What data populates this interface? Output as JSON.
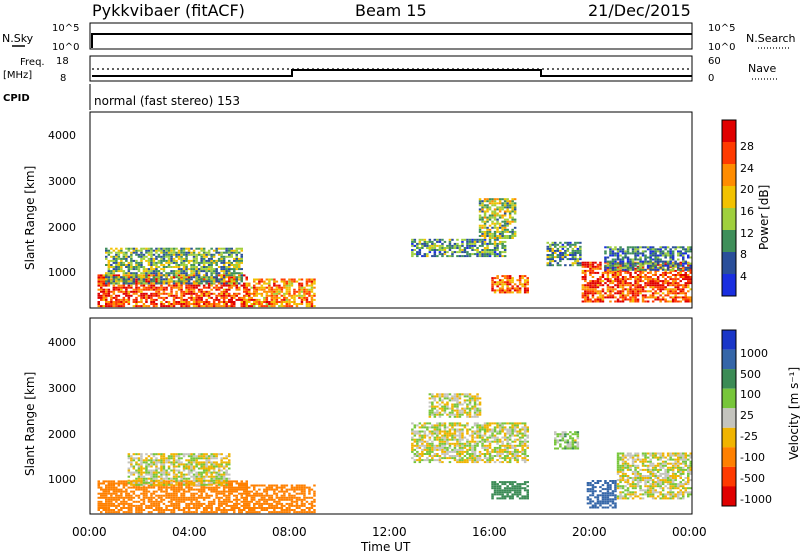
{
  "header": {
    "station": "Pykkvibaer (fitACF)",
    "beam": "Beam 15",
    "date": "21/Dec/2015"
  },
  "top_panels": {
    "nsky": {
      "left_label": "N.Sky",
      "left_ticks": [
        "10^5",
        "10^0"
      ],
      "right_label": "N.Search",
      "right_ticks": [
        "10^5",
        "10^0"
      ]
    },
    "freq": {
      "left_label_1": "Freq.",
      "left_label_2": "[MHz]",
      "left_ticks": [
        "18",
        "8"
      ],
      "right_label": "Nave",
      "right_ticks": [
        "60",
        "0"
      ]
    },
    "cpid": {
      "label": "CPID",
      "text": "normal (fast stereo) 153"
    }
  },
  "power_panel": {
    "ylabel": "Slant Range [km]",
    "yticks": [
      "4000",
      "3000",
      "2000",
      "1000"
    ],
    "colorbar_label": "Power [dB]",
    "colorbar_ticks": [
      "28",
      "24",
      "20",
      "16",
      "12",
      "8",
      "4"
    ],
    "colorbar_colors": [
      "#e00000",
      "#ff3a00",
      "#ff8c00",
      "#f2c200",
      "#9fcf3d",
      "#3f8f5a",
      "#2a4f9a",
      "#1a2fe0"
    ]
  },
  "velocity_panel": {
    "ylabel": "Slant Range [km]",
    "yticks": [
      "4000",
      "3000",
      "2000",
      "1000"
    ],
    "colorbar_label": "Velocity [m s⁻¹]",
    "colorbar_ticks": [
      "1000",
      "500",
      "100",
      "25",
      "-25",
      "-100",
      "-500",
      "-1000"
    ],
    "colorbar_colors": [
      "#1a36c8",
      "#3566a8",
      "#3b8b55",
      "#77c63a",
      "#c4c4be",
      "#f0b400",
      "#ff8000",
      "#ff3a00",
      "#e00000"
    ]
  },
  "xaxis": {
    "ticks": [
      "00:00",
      "04:00",
      "08:00",
      "12:00",
      "16:00",
      "20:00",
      "00:00"
    ],
    "label": "Time UT"
  },
  "chart_data": [
    {
      "type": "line",
      "title": "N.Sky / N.Search",
      "x": [
        0,
        0.2,
        24
      ],
      "ylim": [
        0,
        5
      ],
      "y_scale": "log",
      "series": [
        {
          "values": [
            0,
            4.5,
            4.6
          ]
        }
      ]
    },
    {
      "type": "line",
      "title": "Freq. / Nave",
      "x": [
        0,
        8.1,
        8.1,
        18.2,
        18.2,
        24
      ],
      "ylim_left": [
        8,
        18
      ],
      "ylim_right": [
        0,
        60
      ],
      "series": [
        {
          "values": [
            10.5,
            10.5,
            12.2,
            12.2,
            10.5,
            10.5
          ]
        }
      ]
    },
    {
      "type": "heatmap",
      "title": "Power",
      "x_range_hours": [
        0,
        24
      ],
      "y_range_km": [
        180,
        4500
      ],
      "colorbar_range_db": [
        0,
        32
      ],
      "patches": [
        {
          "t0": 0.3,
          "t1": 6.2,
          "r0": 200,
          "r1": 900,
          "value": 26
        },
        {
          "t0": 0.6,
          "t1": 6.0,
          "r0": 700,
          "r1": 1500,
          "value": 12
        },
        {
          "t0": 6.2,
          "t1": 8.9,
          "r0": 200,
          "r1": 800,
          "value": 22
        },
        {
          "t0": 12.8,
          "t1": 16.5,
          "r0": 1300,
          "r1": 1700,
          "value": 10
        },
        {
          "t0": 15.5,
          "t1": 17.0,
          "r0": 1700,
          "r1": 2600,
          "value": 14
        },
        {
          "t0": 16.0,
          "t1": 17.5,
          "r0": 500,
          "r1": 900,
          "value": 24
        },
        {
          "t0": 18.2,
          "t1": 19.6,
          "r0": 1100,
          "r1": 1600,
          "value": 10
        },
        {
          "t0": 19.6,
          "t1": 24.0,
          "r0": 300,
          "r1": 1200,
          "value": 26
        },
        {
          "t0": 20.5,
          "t1": 24.0,
          "r0": 1000,
          "r1": 1500,
          "value": 8
        }
      ]
    },
    {
      "type": "heatmap",
      "title": "Velocity",
      "x_range_hours": [
        0,
        24
      ],
      "y_range_km": [
        180,
        4500
      ],
      "colorbar_range_ms": [
        -1000,
        1000
      ],
      "patches": [
        {
          "t0": 0.3,
          "t1": 6.2,
          "r0": 200,
          "r1": 900,
          "value": -300
        },
        {
          "t0": 1.5,
          "t1": 5.5,
          "r0": 800,
          "r1": 1500,
          "value": 0
        },
        {
          "t0": 6.2,
          "t1": 8.9,
          "r0": 200,
          "r1": 800,
          "value": -300
        },
        {
          "t0": 12.8,
          "t1": 17.5,
          "r0": 1300,
          "r1": 2200,
          "value": 0
        },
        {
          "t0": 13.5,
          "t1": 15.5,
          "r0": 2300,
          "r1": 2800,
          "value": 0
        },
        {
          "t0": 16.0,
          "t1": 17.5,
          "r0": 500,
          "r1": 900,
          "value": 300
        },
        {
          "t0": 19.8,
          "t1": 21.0,
          "r0": 300,
          "r1": 900,
          "value": 600
        },
        {
          "t0": 21.0,
          "t1": 24.0,
          "r0": 500,
          "r1": 1500,
          "value": 0
        },
        {
          "t0": 18.5,
          "t1": 19.5,
          "r0": 1600,
          "r1": 2000,
          "value": 50
        }
      ]
    }
  ]
}
